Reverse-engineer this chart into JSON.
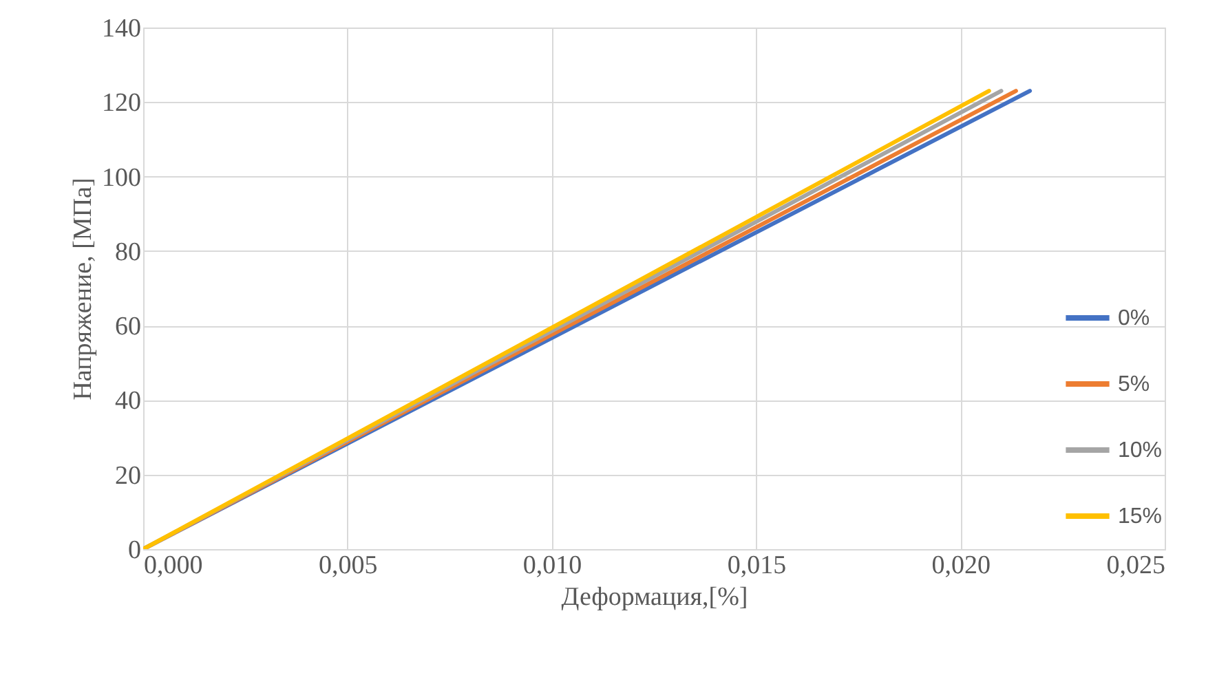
{
  "chart_data": {
    "type": "line",
    "xlabel": "Деформация,[%]",
    "ylabel": "Напряжение, [МПа]",
    "xlim": [
      0,
      0.025
    ],
    "xticks": [
      {
        "value": 0,
        "label": "0,000"
      },
      {
        "value": 0.005,
        "label": "0,005"
      },
      {
        "value": 0.01,
        "label": "0,010"
      },
      {
        "value": 0.015,
        "label": "0,015"
      },
      {
        "value": 0.02,
        "label": "0,020"
      },
      {
        "value": 0.025,
        "label": "0,025"
      }
    ],
    "ylim": [
      0,
      140
    ],
    "yticks": [
      0,
      20,
      40,
      60,
      80,
      100,
      120,
      140
    ],
    "grid": true,
    "legend": "right",
    "marker": "none",
    "line_style": "solid",
    "series": [
      {
        "name": "0%",
        "color": "#4472c4",
        "x": [
          0,
          0.0217
        ],
        "values": [
          0,
          123
        ]
      },
      {
        "name": "5%",
        "color": "#ed7d31",
        "x": [
          0,
          0.02136
        ],
        "values": [
          0,
          123
        ]
      },
      {
        "name": "10%",
        "color": "#a5a5a5",
        "x": [
          0,
          0.021
        ],
        "values": [
          0,
          123
        ]
      },
      {
        "name": "15%",
        "color": "#ffc000",
        "x": [
          0,
          0.0207
        ],
        "values": [
          0,
          123
        ]
      }
    ]
  }
}
